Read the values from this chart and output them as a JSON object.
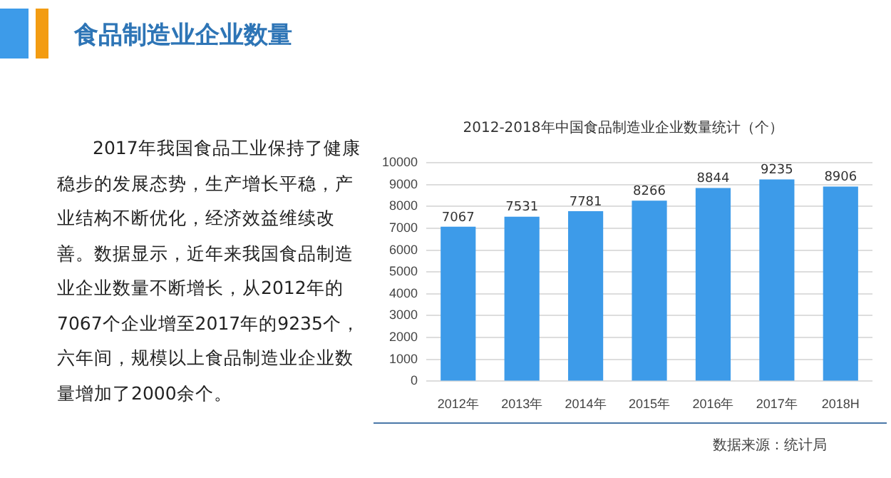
{
  "chart_data": {
    "type": "bar",
    "title": "食品制造业企业数量",
    "subtitle": "2012-2018年中国食品制造业企业数量统计（个）",
    "categories": [
      "2012年",
      "2013年",
      "2014年",
      "2015年",
      "2016年",
      "2017年",
      "2018H"
    ],
    "values": [
      7067,
      7531,
      7781,
      8266,
      8844,
      9235,
      8906
    ],
    "color": "#3d9be9",
    "ylim": [
      0,
      10000
    ],
    "yticks": [
      0,
      1000,
      2000,
      3000,
      4000,
      5000,
      6000,
      7000,
      8000,
      9000,
      10000
    ],
    "grid": "y",
    "legend": false,
    "data_labels": true,
    "annotations": [
      "2017年我国食品工业保持了健康稳步的发展态势，生产增长平稳，产业结构不断优化，经济效益维续改善。数据显示，近年来我国食品制造业企业数量不断增长，从2012年的7067个企业增至2017年的9235个，六年间，规模以上食品制造业企业数量增加了2000余个。",
      "数据来源：统计局"
    ]
  }
}
